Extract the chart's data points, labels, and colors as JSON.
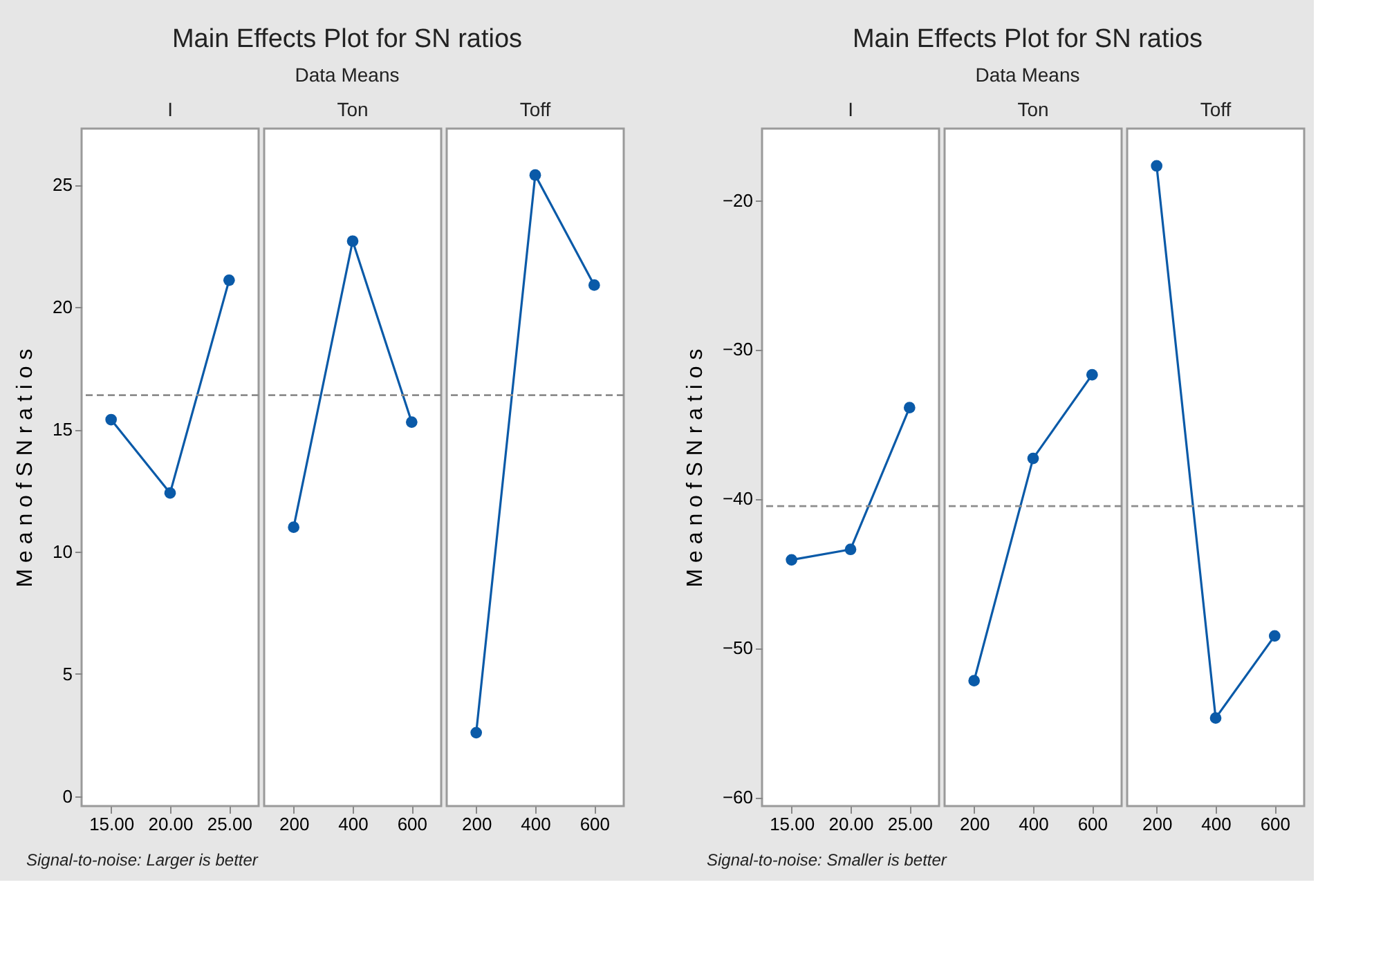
{
  "chart_data": [
    {
      "type": "other",
      "title": "Main Effects Plot for SN ratios",
      "subtitle": "Data Means",
      "annotations": [
        "Signal-to-noise: Larger is better"
      ]
    },
    {
      "type": "line",
      "title": "I",
      "ylabel": "M e a n  o f  S N  r a t i o s",
      "categories": [
        "15.00",
        "20.00",
        "25.00"
      ],
      "series": [
        {
          "color": "#0a5aa8",
          "values": [
            15.4,
            12.4,
            21.1
          ]
        }
      ],
      "marker": "circle",
      "line_style": "solid",
      "ylim": [
        -0.4,
        27.3
      ],
      "yticks": [
        0,
        5,
        10,
        15,
        20,
        25
      ],
      "ref_lines": [
        {
          "axis": "y",
          "value": 16.4,
          "color": "#8c8c8c",
          "line_style": "dashed"
        }
      ]
    },
    {
      "type": "line",
      "title": "Ton",
      "categories": [
        "200",
        "400",
        "600"
      ],
      "series": [
        {
          "color": "#0a5aa8",
          "values": [
            11.0,
            22.7,
            15.3
          ]
        }
      ],
      "marker": "circle",
      "line_style": "solid",
      "ylim": [
        -0.4,
        27.3
      ],
      "tick_labels": "x",
      "ref_lines": [
        {
          "axis": "y",
          "value": 16.4,
          "color": "#8c8c8c",
          "line_style": "dashed"
        }
      ]
    },
    {
      "type": "line",
      "title": "Toff",
      "categories": [
        "200",
        "400",
        "600"
      ],
      "series": [
        {
          "color": "#0a5aa8",
          "values": [
            2.6,
            25.4,
            20.9
          ]
        }
      ],
      "marker": "circle",
      "line_style": "solid",
      "ylim": [
        -0.4,
        27.3
      ],
      "tick_labels": "x",
      "ref_lines": [
        {
          "axis": "y",
          "value": 16.4,
          "color": "#8c8c8c",
          "line_style": "dashed"
        }
      ]
    },
    {
      "type": "other",
      "title": "Main Effects Plot for SN ratios",
      "subtitle": "Data Means",
      "annotations": [
        "Signal-to-noise: Smaller is better"
      ]
    },
    {
      "type": "line",
      "title": "I",
      "ylabel": "M e a n  o f  S N  r a t i o s",
      "categories": [
        "15.00",
        "20.00",
        "25.00"
      ],
      "series": [
        {
          "color": "#0a5aa8",
          "values": [
            -44.1,
            -43.4,
            -33.9
          ]
        }
      ],
      "marker": "circle",
      "line_style": "solid",
      "ylim": [
        -60.6,
        -15.2
      ],
      "yticks": [
        -60,
        -50,
        -40,
        -30,
        -20
      ],
      "ref_lines": [
        {
          "axis": "y",
          "value": -40.5,
          "color": "#8c8c8c",
          "line_style": "dashed"
        }
      ]
    },
    {
      "type": "line",
      "title": "Ton",
      "categories": [
        "200",
        "400",
        "600"
      ],
      "series": [
        {
          "color": "#0a5aa8",
          "values": [
            -52.2,
            -37.3,
            -31.7
          ]
        }
      ],
      "marker": "circle",
      "line_style": "solid",
      "ylim": [
        -60.6,
        -15.2
      ],
      "tick_labels": "x",
      "ref_lines": [
        {
          "axis": "y",
          "value": -40.5,
          "color": "#8c8c8c",
          "line_style": "dashed"
        }
      ]
    },
    {
      "type": "line",
      "title": "Toff",
      "categories": [
        "200",
        "400",
        "600"
      ],
      "series": [
        {
          "color": "#0a5aa8",
          "values": [
            -17.7,
            -54.7,
            -49.2
          ]
        }
      ],
      "marker": "circle",
      "line_style": "solid",
      "ylim": [
        -60.6,
        -15.2
      ],
      "tick_labels": "x",
      "ref_lines": [
        {
          "axis": "y",
          "value": -40.5,
          "color": "#8c8c8c",
          "line_style": "dashed"
        }
      ]
    }
  ]
}
